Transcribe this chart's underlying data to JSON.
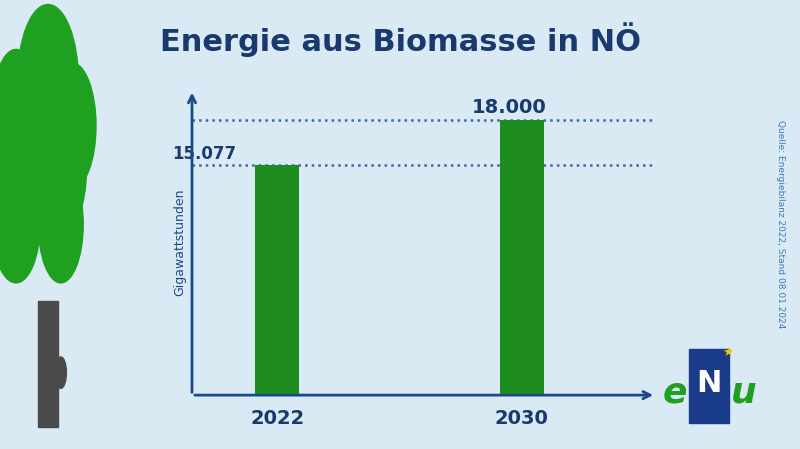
{
  "title": "Energie aus Biomasse in NÖ",
  "title_color": "#1a3a6e",
  "background_color": "#daeaf5",
  "bar_color": "#1e8c1e",
  "axis_color": "#1a4a8a",
  "ylabel": "Gigawattstunden",
  "categories": [
    "2022",
    "2030"
  ],
  "values": [
    15.077,
    18.0
  ],
  "value_labels": [
    "15.077",
    "18.000"
  ],
  "ylim_max": 20.0,
  "dotted_line_color": "#3a6aaa",
  "source_text": "Quelle: Energiebilanz 2022, Stand 08.01.2024",
  "source_color": "#3a7ab5",
  "bar_width": 0.18,
  "x_positions": [
    1,
    2
  ],
  "tree_color_top": "#20a020",
  "tree_color_trunk": "#4a4a4a",
  "enu_bg_color": "#f5c800",
  "enu_e_color": "#20a020",
  "enu_n_color": "#1a3a8a",
  "enu_u_color": "#20a020",
  "enu_star_color": "#f5c800"
}
